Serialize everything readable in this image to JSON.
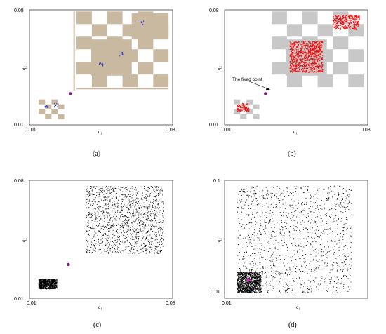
{
  "chart_data": [
    {
      "type": "scatter",
      "panel": "a",
      "caption": "(a)",
      "xlabel": "q₁",
      "ylabel": "q₂",
      "xlim": [
        0.01,
        0.08
      ],
      "ylim": [
        0.01,
        0.08
      ],
      "x_ticks": [
        "0.01",
        "0.08"
      ],
      "y_ticks": [
        "0.01",
        "0.08"
      ],
      "colors": {
        "basin": "#c8b9a0",
        "orbit": "#2f2fc8",
        "fixed_point": "#8a1a8a"
      },
      "fixed_point": [
        0.03,
        0.029
      ],
      "orbit_clusters": [
        [
          0.055,
          0.053
        ],
        [
          0.045,
          0.047
        ],
        [
          0.065,
          0.072
        ],
        [
          0.018,
          0.021
        ],
        [
          0.023,
          0.022
        ]
      ]
    },
    {
      "type": "scatter",
      "panel": "b",
      "caption": "(b)",
      "xlabel": "q₁",
      "ylabel": "q₂",
      "xlim": [
        0.01,
        0.08
      ],
      "ylim": [
        0.01,
        0.08
      ],
      "x_ticks": [
        "0.01",
        "0.08"
      ],
      "y_ticks": [
        "0.01",
        "0.08"
      ],
      "annotation": "The fixed point",
      "colors": {
        "basin": "#c8c8c8",
        "attractor": "#ee1111",
        "fixed_point": "#8a1a8a"
      },
      "fixed_point": [
        0.03,
        0.029
      ],
      "red_regions": [
        {
          "x": [
            0.042,
            0.058
          ],
          "y": [
            0.042,
            0.061
          ]
        },
        {
          "x": [
            0.063,
            0.076
          ],
          "y": [
            0.068,
            0.077
          ]
        },
        {
          "x": [
            0.016,
            0.022
          ],
          "y": [
            0.018,
            0.023
          ]
        }
      ]
    },
    {
      "type": "scatter",
      "panel": "c",
      "caption": "(c)",
      "xlabel": "q₁",
      "ylabel": "q₂",
      "xlim": [
        0.01,
        0.08
      ],
      "ylim": [
        0.01,
        0.08
      ],
      "x_ticks": [
        "0.01",
        "0.08"
      ],
      "y_ticks": [
        "0.01",
        "0.08"
      ],
      "colors": {
        "points": "#000000",
        "fixed_point": "#8a1a8a"
      },
      "fixed_point": [
        0.029,
        0.03
      ],
      "clusters": [
        {
          "x": [
            0.0375,
            0.0755
          ],
          "y": [
            0.0365,
            0.0765
          ]
        },
        {
          "x": [
            0.0145,
            0.0235
          ],
          "y": [
            0.0155,
            0.0215
          ]
        }
      ]
    },
    {
      "type": "scatter",
      "panel": "d",
      "caption": "(d)",
      "xlabel": "q₁",
      "ylabel": "q₂",
      "xlim": [
        0.01,
        0.1
      ],
      "ylim": [
        0.01,
        0.1
      ],
      "x_ticks": [
        "0.01"
      ],
      "y_ticks": [
        "0.01",
        "0.1"
      ],
      "colors": {
        "points": "#000000",
        "fixed_point": "#c02cb0"
      },
      "fixed_point": [
        0.025,
        0.024
      ],
      "clusters": [
        {
          "x": [
            0.018,
            0.09
          ],
          "y": [
            0.014,
            0.096
          ]
        },
        {
          "x": [
            0.018,
            0.033
          ],
          "y": [
            0.014,
            0.03
          ]
        }
      ]
    }
  ]
}
